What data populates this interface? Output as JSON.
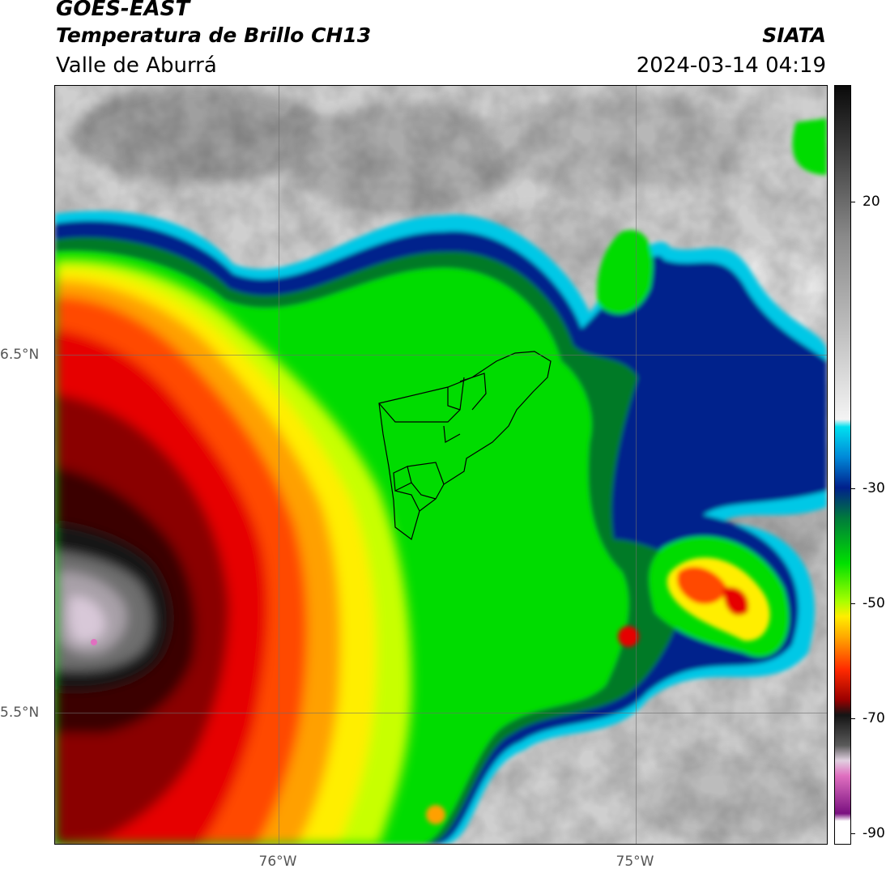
{
  "header": {
    "satellite": "GOES-EAST",
    "product": "Temperatura de Brillo CH13",
    "region": "Valle de Aburrá",
    "org": "SIATA",
    "datetime": "2024-03-14 04:19"
  },
  "map": {
    "lat_labels": [
      "6.5°N",
      "5.5°N"
    ],
    "lon_labels": [
      "76°W",
      "75°W"
    ]
  },
  "colorbar": {
    "tick_labels": [
      "20",
      "-30",
      "-50",
      "-70",
      "-90"
    ],
    "ticks": [
      20,
      -30,
      -50,
      -70,
      -90
    ],
    "range": [
      -92,
      39
    ],
    "colors": {
      "warm_gray": "#c8c8c8",
      "cyan": "#00c8e6",
      "navy": "#00208c",
      "green": "#00dc00",
      "yellow": "#ffee00",
      "red": "#e60000",
      "black": "#141414",
      "pink": "#e070c0",
      "purple": "#7a1080"
    }
  }
}
